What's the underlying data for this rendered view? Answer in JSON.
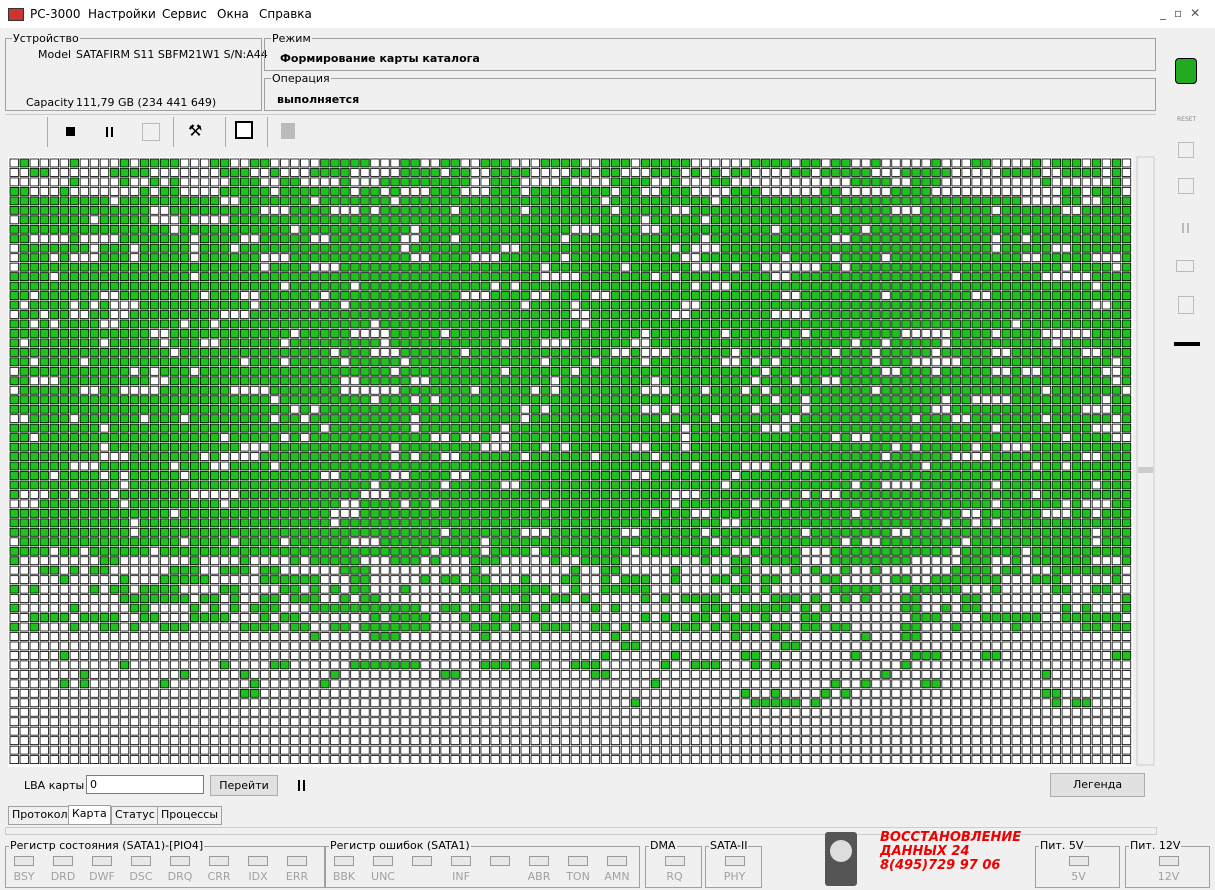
{
  "menu": [
    "PC-3000",
    "Настройки",
    "Сервис",
    "Окна",
    "Справка"
  ],
  "device": {
    "title": "Устройство",
    "model_label": "Model",
    "model": "SATAFIRM   S11 SBFM21W1 S/N:A44",
    "capacity_label": "Capacity",
    "capacity": "111,79 GB (234 441 649)"
  },
  "mode": {
    "title": "Режим",
    "value": "Формирование карты каталога"
  },
  "operation": {
    "title": "Операция",
    "value": "выполняется"
  },
  "sidebar": {
    "reset": "RESET"
  },
  "lba": {
    "label": "LBA карты",
    "value": "0",
    "go": "Перейти",
    "legend": "Легенда"
  },
  "tabs": [
    "Протокол",
    "Карта",
    "Статус",
    "Процессы"
  ],
  "status": [
    {
      "title": "Регистр состояния (SATA1)-[PIO4]",
      "bits": [
        "BSY",
        "DRD",
        "DWF",
        "DSC",
        "DRQ",
        "CRR",
        "IDX",
        "ERR"
      ]
    },
    {
      "title": "Регистр ошибок  (SATA1)",
      "bits": [
        "BBK",
        "UNC",
        null,
        "INF",
        null,
        "ABR",
        "TON",
        "AMN"
      ]
    },
    {
      "title": "DMA",
      "bits": [
        "RQ"
      ]
    },
    {
      "title": "SATA-II",
      "bits": [
        "PHY"
      ]
    }
  ],
  "logo": {
    "line1": "ВОССТАНОВЛЕНИЕ",
    "line2": "ДАННЫХ  24",
    "phone": "8(495)729 97 06"
  },
  "power": [
    {
      "title": "Пит. 5V",
      "bits": [
        "5V"
      ]
    },
    {
      "title": "Пит. 12V",
      "bits": [
        "12V"
      ]
    }
  ]
}
